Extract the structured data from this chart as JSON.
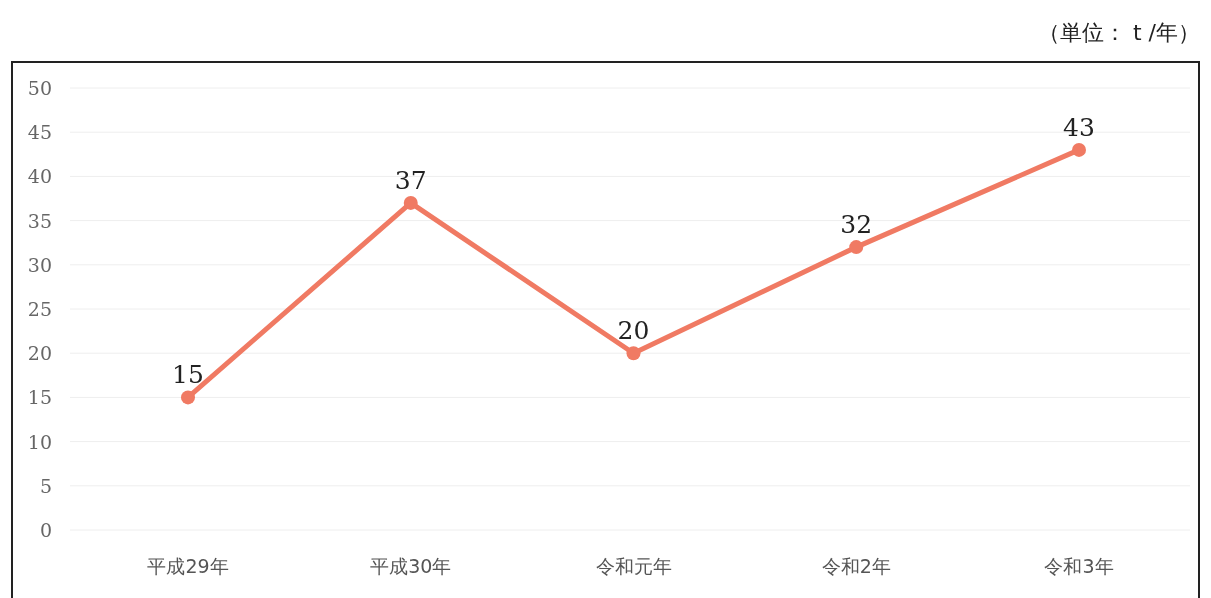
{
  "chart_data": {
    "type": "line",
    "annotations": [
      "（単位： t /年）"
    ],
    "categories": [
      "平成29年",
      "平成30年",
      "令和元年",
      "令和2年",
      "令和3年"
    ],
    "series": [
      {
        "color": "#f07a63",
        "values": [
          15,
          37,
          20,
          32,
          43
        ]
      }
    ],
    "ylim": [
      0,
      50
    ],
    "yticks": [
      0,
      5,
      10,
      15,
      20,
      25,
      30,
      35,
      40,
      45,
      50
    ],
    "grid": "y",
    "marker": "circle",
    "data_labels": true
  }
}
